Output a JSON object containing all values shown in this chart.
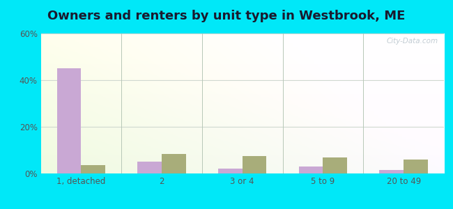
{
  "title": "Owners and renters by unit type in Westbrook, ME",
  "categories": [
    "1, detached",
    "2",
    "3 or 4",
    "5 to 9",
    "20 to 49"
  ],
  "owner_values": [
    45,
    5,
    2,
    3,
    1.5
  ],
  "renter_values": [
    3.5,
    8.5,
    7.5,
    7,
    6
  ],
  "owner_color": "#c9a8d4",
  "renter_color": "#a8ad7a",
  "background_outer": "#00e8f8",
  "title_fontsize": 13,
  "tick_fontsize": 8.5,
  "legend_fontsize": 9,
  "ylim": [
    0,
    60
  ],
  "yticks": [
    0,
    20,
    40,
    60
  ],
  "ytick_labels": [
    "0%",
    "20%",
    "40%",
    "60%"
  ],
  "watermark": "City-Data.com",
  "bar_width": 0.3,
  "grid_color": "#d0d8d0"
}
